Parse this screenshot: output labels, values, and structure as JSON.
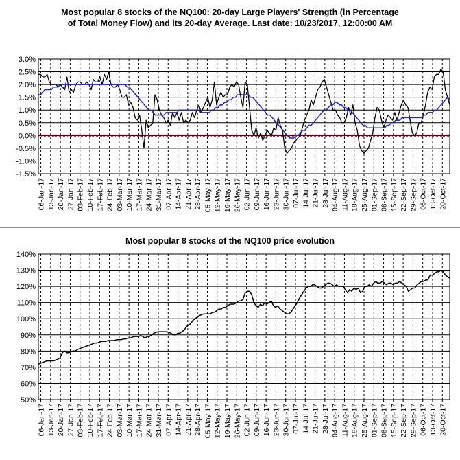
{
  "colors": {
    "black": "#000000",
    "blue": "#1f22d8",
    "zero": "#cc0033",
    "grid": "#000000"
  },
  "charts": {
    "strength": {
      "title_line1": "Most popular 8 stocks of the NQ100: 20-day Large Players' Strength (in Percentage",
      "title_line2": "of Total Money Flow) and its 20-day Average. Last date: 10/23/2017, 12:00:00 AM"
    },
    "price": {
      "title_line1": "Most popular 8 stocks of the NQ100 price evolution"
    }
  },
  "chart_data": [
    {
      "type": "line",
      "title": "Most popular 8 stocks of the NQ100: 20-day Large Players' Strength (in Percentage of Total Money Flow) and its 20-day Average. Last date: 10/23/2017, 12:00:00 AM",
      "xlabel": "",
      "ylabel": "",
      "ylim": [
        -1.5,
        3.0
      ],
      "y_ticks": [
        "-1.5%",
        "-1.0%",
        "-0.5%",
        "0.0%",
        "0.5%",
        "1.0%",
        "1.5%",
        "2.0%",
        "2.5%",
        "3.0%"
      ],
      "x_ticks": [
        "06-Jan-17",
        "13-Jan-17",
        "20-Jan-17",
        "27-Jan-17",
        "03-Feb-17",
        "10-Feb-17",
        "17-Feb-17",
        "24-Feb-17",
        "03-Mar-17",
        "10-Mar-17",
        "17-Mar-17",
        "24-Mar-17",
        "31-Mar-17",
        "07-Apr-17",
        "14-Apr-17",
        "21-Apr-17",
        "28-Apr-17",
        "05-May-17",
        "12-May-17",
        "19-May-17",
        "26-May-17",
        "02-Jun-17",
        "09-Jun-17",
        "16-Jun-17",
        "23-Jun-17",
        "30-Jun-17",
        "07-Jul-17",
        "14-Jul-17",
        "21-Jul-17",
        "28-Jul-17",
        "04-Aug-17",
        "11-Aug-17",
        "18-Aug-17",
        "25-Aug-17",
        "01-Sep-17",
        "08-Sep-17",
        "15-Sep-17",
        "22-Sep-17",
        "29-Sep-17",
        "06-Oct-17",
        "13-Oct-17",
        "20-Oct-17"
      ],
      "grid": "on",
      "reference_line": 0.0,
      "series": [
        {
          "color": "#000000",
          "values": [
            2.4,
            2.4,
            2.3,
            2.3,
            2.4,
            2.1,
            2.0,
            2.0,
            2.0,
            1.9,
            2.0,
            1.9,
            1.8,
            2.3,
            1.7,
            1.8,
            1.7,
            2.0,
            2.1,
            2.1,
            2.0,
            2.0,
            2.1,
            2.0,
            1.8,
            2.2,
            2.1,
            2.1,
            2.3,
            2.0,
            2.4,
            2.2,
            2.5,
            2.0,
            1.9,
            1.9,
            2.0,
            1.8,
            1.5,
            1.5,
            1.6,
            1.2,
            1.3,
            1.1,
            0.7,
            0.6,
            0.8,
            0.2,
            -0.5,
            0.6,
            0.3,
            0.4,
            0.5,
            1.6,
            1.4,
            1.0,
            0.8,
            0.7,
            0.5,
            0.6,
            0.4,
            0.9,
            0.7,
            0.9,
            0.6,
            0.9,
            0.5,
            0.6,
            0.5,
            0.6,
            0.9,
            0.7,
            1.0,
            1.2,
            0.9,
            1.1,
            1.3,
            1.5,
            1.1,
            1.4,
            2.1,
            1.2,
            1.5,
            1.7,
            1.5,
            1.6,
            1.6,
            1.9,
            2.0,
            1.9,
            2.1,
            2.0,
            1.5,
            1.1,
            2.1,
            2.0,
            1.1,
            0.2,
            0.0,
            0.3,
            -0.1,
            0.1,
            -0.2,
            0.0,
            0.2,
            0.1,
            0.0,
            0.3,
            0.2,
            0.7,
            0.4,
            0.2,
            -0.5,
            -0.7,
            -0.6,
            -0.5,
            -0.3,
            -0.2,
            -0.1,
            0.0,
            0.3,
            0.6,
            0.8,
            1.0,
            1.4,
            1.2,
            1.5,
            1.8,
            1.9,
            2.1,
            2.2,
            1.9,
            1.6,
            1.3,
            1.0,
            1.0,
            0.8,
            0.7,
            0.5,
            0.5,
            0.7,
            1.1,
            0.8,
            1.2,
            0.5,
            0.2,
            -0.4,
            -0.6,
            -0.7,
            -0.6,
            -0.5,
            -0.2,
            0.1,
            0.7,
            1.1,
            1.0,
            0.6,
            0.3,
            0.6,
            0.8,
            0.7,
            0.6,
            0.9,
            0.6,
            0.9,
            1.2,
            1.4,
            1.2,
            1.1,
            0.6,
            0.1,
            0.0,
            0.1,
            0.5,
            0.5,
            0.8,
            1.2,
            1.7,
            1.9,
            1.8,
            2.3,
            2.4,
            2.4,
            2.6,
            2.5,
            1.8,
            1.5,
            1.2
          ]
        },
        {
          "color": "#1f22d8",
          "values": [
            1.6,
            1.6,
            1.7,
            1.8,
            1.8,
            1.8,
            1.8,
            1.9,
            1.9,
            1.9,
            2.0,
            2.0,
            2.0,
            2.0,
            2.0,
            2.0,
            2.0,
            2.0,
            2.0,
            2.0,
            2.0,
            2.0,
            2.0,
            2.0,
            2.0,
            2.0,
            2.0,
            2.0,
            2.0,
            2.0,
            2.0,
            2.0,
            2.0,
            2.0,
            2.0,
            2.0,
            2.0,
            2.0,
            2.0,
            2.0,
            2.0,
            1.9,
            1.9,
            1.8,
            1.7,
            1.6,
            1.5,
            1.4,
            1.3,
            1.2,
            1.1,
            1.0,
            1.0,
            0.9,
            0.8,
            0.8,
            0.8,
            0.8,
            0.8,
            0.9,
            0.9,
            0.9,
            0.9,
            0.9,
            0.9,
            1.0,
            1.0,
            1.0,
            1.0,
            1.0,
            1.0,
            1.0,
            1.0,
            1.0,
            1.0,
            0.9,
            0.9,
            0.9,
            0.9,
            0.9,
            1.0,
            1.0,
            1.1,
            1.1,
            1.2,
            1.2,
            1.3,
            1.3,
            1.4,
            1.4,
            1.5,
            1.5,
            1.6,
            1.6,
            1.6,
            1.6,
            1.6,
            1.6,
            1.5,
            1.5,
            1.4,
            1.3,
            1.2,
            1.1,
            1.0,
            0.9,
            0.8,
            0.8,
            0.7,
            0.6,
            0.5,
            0.4,
            0.3,
            0.2,
            0.1,
            0.0,
            -0.1,
            -0.1,
            -0.1,
            0.0,
            0.0,
            0.1,
            0.2,
            0.2,
            0.3,
            0.4,
            0.4,
            0.5,
            0.6,
            0.7,
            0.8,
            0.9,
            1.0,
            1.0,
            1.1,
            1.2,
            1.2,
            1.3,
            1.3,
            1.2,
            1.2,
            1.1,
            1.1,
            1.0,
            1.0,
            0.9,
            0.8,
            0.7,
            0.6,
            0.5,
            0.4,
            0.4,
            0.3,
            0.3,
            0.3,
            0.3,
            0.3,
            0.3,
            0.3,
            0.3,
            0.3,
            0.4,
            0.4,
            0.5,
            0.5,
            0.6,
            0.6,
            0.6,
            0.7,
            0.7,
            0.7,
            0.7,
            0.7,
            0.7,
            0.7,
            0.7,
            0.7,
            0.7,
            0.8,
            0.8,
            0.9,
            0.9,
            0.9,
            1.0,
            1.0,
            1.1,
            1.2,
            1.3,
            1.4,
            1.5,
            1.4
          ]
        }
      ]
    },
    {
      "type": "line",
      "title": "Most popular 8 stocks of the NQ100 price evolution",
      "xlabel": "",
      "ylabel": "",
      "ylim": [
        50,
        140
      ],
      "y_ticks": [
        "50%",
        "60%",
        "70%",
        "80%",
        "90%",
        "100%",
        "110%",
        "120%",
        "130%",
        "140%"
      ],
      "x_ticks": [
        "06-Jan-17",
        "13-Jan-17",
        "20-Jan-17",
        "27-Jan-17",
        "03-Feb-17",
        "10-Feb-17",
        "17-Feb-17",
        "24-Feb-17",
        "03-Mar-17",
        "10-Mar-17",
        "17-Mar-17",
        "24-Mar-17",
        "31-Mar-17",
        "07-Apr-17",
        "14-Apr-17",
        "21-Apr-17",
        "28-Apr-17",
        "05-May-17",
        "12-May-17",
        "19-May-17",
        "26-May-17",
        "02-Jun-17",
        "09-Jun-17",
        "16-Jun-17",
        "23-Jun-17",
        "30-Jun-17",
        "07-Jul-17",
        "14-Jul-17",
        "21-Jul-17",
        "28-Jul-17",
        "04-Aug-17",
        "11-Aug-17",
        "18-Aug-17",
        "25-Aug-17",
        "01-Sep-17",
        "08-Sep-17",
        "15-Sep-17",
        "22-Sep-17",
        "29-Sep-17",
        "06-Oct-17",
        "13-Oct-17",
        "20-Oct-17"
      ],
      "grid": "on",
      "series": [
        {
          "color": "#000000",
          "values": [
            72,
            72.5,
            73,
            73.5,
            74,
            74,
            74,
            74,
            74.5,
            75,
            76,
            79,
            80,
            79,
            79,
            79.5,
            80,
            80,
            81,
            81.5,
            82,
            82.5,
            83,
            83.5,
            84,
            84.5,
            85,
            85,
            85.5,
            86,
            86,
            86,
            86.5,
            86.5,
            86.5,
            86.5,
            87,
            87,
            87,
            87.5,
            87.5,
            88,
            88,
            88.5,
            89,
            89,
            89,
            89.5,
            89,
            88,
            89,
            89,
            90,
            91,
            91.5,
            92,
            92,
            92,
            92,
            92,
            91.5,
            91,
            90,
            90,
            91,
            91,
            92,
            93,
            95,
            96,
            97,
            99,
            100,
            101,
            102,
            102.5,
            103,
            103,
            103,
            103,
            104,
            104,
            105,
            106,
            106,
            107,
            107,
            108,
            109,
            109,
            109,
            110,
            111,
            111,
            112,
            116,
            117,
            117,
            115,
            110,
            108,
            107,
            109,
            108,
            110,
            109,
            110,
            111,
            108,
            107,
            108,
            106,
            105,
            104,
            103,
            103,
            104,
            106,
            108,
            110,
            113,
            115,
            117,
            119,
            120,
            120,
            121,
            121,
            120,
            119,
            119,
            120,
            121,
            122,
            122,
            121,
            120,
            121,
            120,
            120,
            120,
            118,
            116,
            118,
            117,
            119,
            118,
            119,
            116,
            117,
            120,
            120,
            121,
            120,
            122,
            123,
            122,
            122,
            123,
            122,
            121,
            122,
            122,
            121,
            122,
            122,
            123,
            122,
            121,
            120,
            117,
            118,
            119,
            119,
            121,
            122,
            123,
            123,
            124,
            124,
            127,
            127,
            128,
            129,
            129,
            130,
            129,
            127,
            126,
            125
          ]
        }
      ]
    }
  ]
}
